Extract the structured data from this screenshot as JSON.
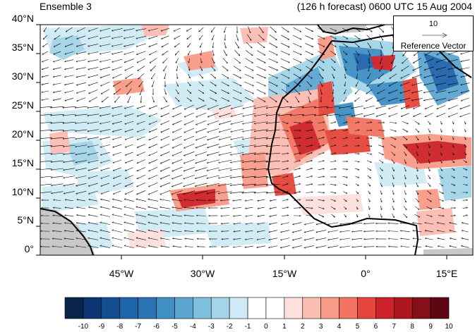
{
  "header": {
    "left": "Ensemble 3",
    "right": "(126 h forecast) 0600 UTC 15 Aug 2004"
  },
  "map": {
    "lat_labels": [
      "40°N",
      "35°N",
      "30°N",
      "25°N",
      "20°N",
      "15°N",
      "10°N",
      "5°N",
      "0°"
    ],
    "lon_labels": [
      "45°W",
      "30°W",
      "15°W",
      "0°",
      "15°E"
    ],
    "lon_range": [
      -59,
      20
    ],
    "lat_range": [
      0,
      40
    ],
    "land_mask_color": "#c8c8c8"
  },
  "reference_vector": {
    "magnitude": "10",
    "label": "Reference Vector"
  },
  "colorbar": {
    "labels": [
      "-10",
      "-9",
      "-8",
      "-7",
      "-6",
      "-5",
      "-4",
      "-3",
      "-2",
      "-1",
      "0",
      "1",
      "2",
      "3",
      "4",
      "5",
      "6",
      "7",
      "8",
      "9",
      "10"
    ],
    "colors": [
      "#08244a",
      "#0c3372",
      "#14508f",
      "#1e64aa",
      "#2a74b6",
      "#3f8fc5",
      "#5ea6d2",
      "#7fbfdf",
      "#a3d4e8",
      "#d0ebf5",
      "#ffffff",
      "#ffffff",
      "#fde0dd",
      "#fbbcb2",
      "#f89a88",
      "#f2735f",
      "#e5453a",
      "#cd2229",
      "#ae1720",
      "#86101a",
      "#5e0712"
    ]
  }
}
